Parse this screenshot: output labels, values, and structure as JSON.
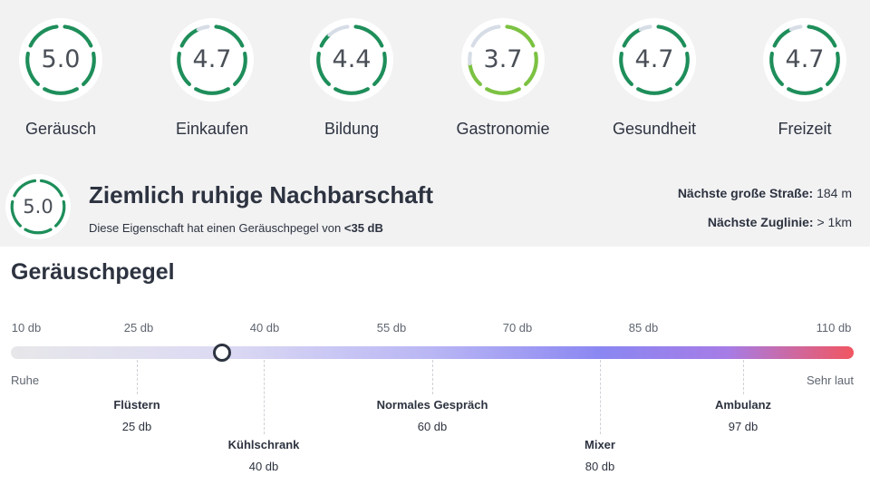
{
  "ratings": [
    {
      "label": "Geräusch",
      "value": "5.0",
      "score": 5.0,
      "color": "#1e8e5a"
    },
    {
      "label": "Einkaufen",
      "value": "4.7",
      "score": 4.7,
      "color": "#1e8e5a"
    },
    {
      "label": "Bildung",
      "value": "4.4",
      "score": 4.4,
      "color": "#1e8e5a"
    },
    {
      "label": "Gastronomie",
      "value": "3.7",
      "score": 3.7,
      "color": "#7cc242"
    },
    {
      "label": "Gesundheit",
      "value": "4.7",
      "score": 4.7,
      "color": "#1e8e5a"
    },
    {
      "label": "Freizeit",
      "value": "4.7",
      "score": 4.7,
      "color": "#1e8e5a"
    }
  ],
  "summary": {
    "value": "5.0",
    "score": 5.0,
    "color": "#1e8e5a",
    "title": "Ziemlich ruhige Nachbarschaft",
    "desc_prefix": "Diese Eigenschaft hat einen Geräuschpegel von",
    "desc_value": "<35 dB"
  },
  "distances": {
    "road_label": "Nächste große Straße:",
    "road_value": "184 m",
    "train_label": "Nächste Zuglinie:",
    "train_value": "> 1km"
  },
  "noise_scale": {
    "title": "Geräuschpegel",
    "ticks": [
      "10 db",
      "25 db",
      "40 db",
      "55 db",
      "70 db",
      "85 db",
      "110 db"
    ],
    "low_label": "Ruhe",
    "high_label": "Sehr laut",
    "current_level_db": 35,
    "references": [
      {
        "name": "Flüstern",
        "db": "25 db"
      },
      {
        "name": "Kühlschrank",
        "db": "40 db"
      },
      {
        "name": "Normales Gespräch",
        "db": "60 db"
      },
      {
        "name": "Mixer",
        "db": "80 db"
      },
      {
        "name": "Ambulanz",
        "db": "97 db"
      }
    ]
  },
  "colors": {
    "gauge_track": "#d7dde6",
    "green_dark": "#1e8e5a",
    "green_light": "#7cc242",
    "text": "#2d3340"
  }
}
